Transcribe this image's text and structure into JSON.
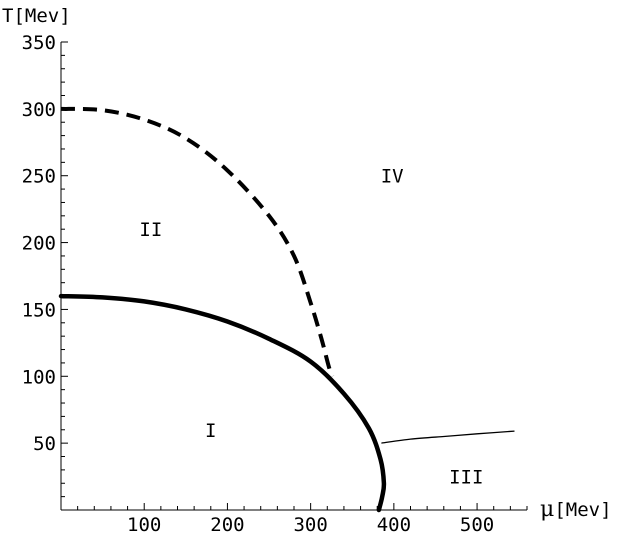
{
  "chart_data": {
    "type": "line",
    "ylabel": "T[Mev]",
    "xlabel_symbol": "μ",
    "xlabel_unit": "[Mev]",
    "xlim": [
      0,
      560
    ],
    "ylim": [
      0,
      350
    ],
    "x_ticks": [
      100,
      200,
      300,
      400,
      500
    ],
    "y_ticks": [
      50,
      100,
      150,
      200,
      250,
      300,
      350
    ],
    "grid": false,
    "series": [
      {
        "style": "dashed-thick",
        "points": [
          [
            0,
            300
          ],
          [
            50,
            299
          ],
          [
            100,
            292
          ],
          [
            150,
            278
          ],
          [
            200,
            254
          ],
          [
            250,
            220
          ],
          [
            280,
            190
          ],
          [
            300,
            155
          ],
          [
            313,
            128
          ],
          [
            322,
            107
          ],
          [
            326,
            100
          ]
        ]
      },
      {
        "style": "solid-thick",
        "points": [
          [
            0,
            160
          ],
          [
            50,
            159
          ],
          [
            100,
            156
          ],
          [
            150,
            150
          ],
          [
            200,
            141
          ],
          [
            250,
            128
          ],
          [
            300,
            111
          ],
          [
            340,
            87
          ],
          [
            370,
            61
          ],
          [
            384,
            38
          ],
          [
            388,
            20
          ],
          [
            386,
            10
          ],
          [
            382,
            0
          ]
        ]
      },
      {
        "style": "solid-thin",
        "points": [
          [
            385,
            50
          ],
          [
            420,
            53
          ],
          [
            460,
            55
          ],
          [
            500,
            57
          ],
          [
            545,
            59
          ]
        ]
      }
    ],
    "annotations": [
      {
        "text": "I",
        "x": 180,
        "y": 60
      },
      {
        "text": "II",
        "x": 108,
        "y": 210
      },
      {
        "text": "III",
        "x": 487,
        "y": 25
      },
      {
        "text": "IV",
        "x": 398,
        "y": 250
      }
    ]
  }
}
